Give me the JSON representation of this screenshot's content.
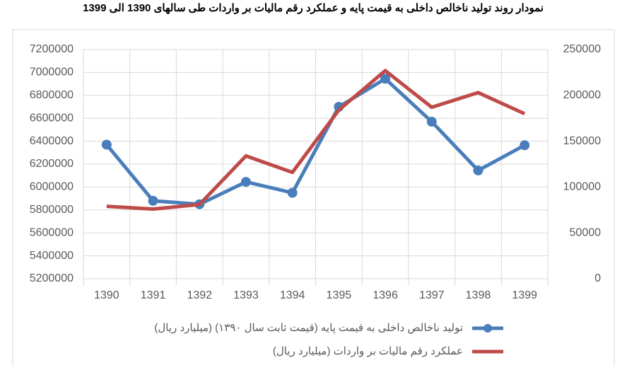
{
  "chart_data": {
    "type": "line",
    "title": "نمودار روند تولید ناخالص داخلی به قیمت پایه  و عملکرد رقم مالیات بر واردات طی سالهای 1390 الی 1399",
    "categories": [
      "1390",
      "1391",
      "1392",
      "1393",
      "1394",
      "1395",
      "1396",
      "1397",
      "1398",
      "1399"
    ],
    "series": [
      {
        "name": "تولید ناخالص داخلی به قیمت پایه (قیمت ثابت سال ۱۳۹۰) (میلیارد ریال)",
        "color": "#4a7ebb",
        "markers": true,
        "values": [
          6370000,
          5880000,
          5850000,
          6045000,
          5950000,
          6700000,
          6945000,
          6570000,
          6145000,
          6365000
        ]
      },
      {
        "name": "عملکرد رقم مالیات بر واردات (میلیارد ریال)",
        "color": "#be4b48",
        "markers": false,
        "axis": "y2",
        "values": [
          79000,
          76000,
          81000,
          134000,
          116000,
          184000,
          227000,
          187000,
          203000,
          180000
        ]
      }
    ],
    "ylim": [
      5200000,
      7200000
    ],
    "yticks": [
      5200000,
      5400000,
      5600000,
      5800000,
      6000000,
      6200000,
      6400000,
      6600000,
      6800000,
      7000000,
      7200000
    ],
    "y2lim": [
      0,
      250000
    ],
    "y2ticks": [
      0,
      50000,
      100000,
      150000,
      200000,
      250000
    ],
    "grid": true
  }
}
